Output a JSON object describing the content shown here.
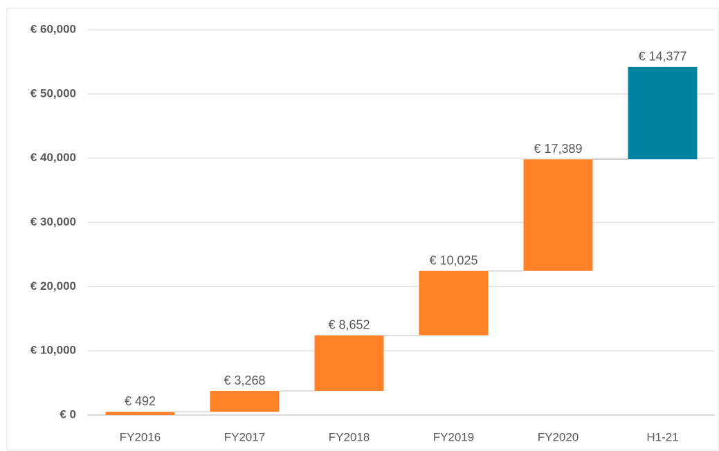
{
  "chart_data": {
    "type": "waterfall",
    "categories": [
      "FY2016",
      "FY2017",
      "FY2018",
      "FY2019",
      "FY2020",
      "H1-21"
    ],
    "values": [
      492,
      3268,
      8652,
      10025,
      17389,
      14377
    ],
    "value_labels": [
      "€ 492",
      "€ 3,268",
      "€ 8,652",
      "€ 10,025",
      "€ 17,389",
      "€ 14,377"
    ],
    "colors": [
      "#ff8128",
      "#ff8128",
      "#ff8128",
      "#ff8128",
      "#ff8128",
      "#0082a0"
    ],
    "ylim": [
      0,
      60000
    ],
    "yticks": [
      {
        "value": 0,
        "label": "€ 0"
      },
      {
        "value": 10000,
        "label": "€ 10,000"
      },
      {
        "value": 20000,
        "label": "€ 20,000"
      },
      {
        "value": 30000,
        "label": "€ 30,000"
      },
      {
        "value": 40000,
        "label": "€ 40,000"
      },
      {
        "value": 50000,
        "label": "€ 50,000"
      },
      {
        "value": 60000,
        "label": "€ 60,000"
      }
    ],
    "grid": true
  }
}
